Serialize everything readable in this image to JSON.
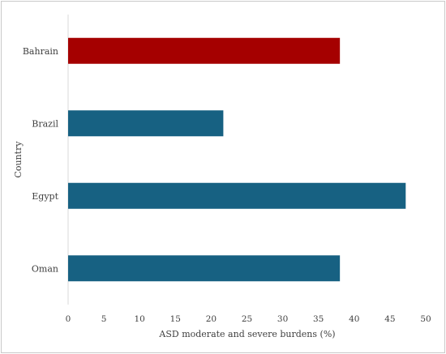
{
  "chart_data": {
    "type": "bar",
    "orientation": "horizontal",
    "categories": [
      "Bahrain",
      "Brazil",
      "Egypt",
      "Oman"
    ],
    "values": [
      38,
      21.7,
      47.2,
      38
    ],
    "bar_colors": [
      "#A50000",
      "#176182",
      "#176182",
      "#176182"
    ],
    "xlabel": "ASD moderate and severe burdens (%)",
    "ylabel": "Country",
    "xlim": [
      0,
      50
    ],
    "xticks": [
      0,
      5,
      10,
      15,
      20,
      25,
      30,
      35,
      40,
      45,
      50
    ],
    "grid": false,
    "legend": "none"
  }
}
